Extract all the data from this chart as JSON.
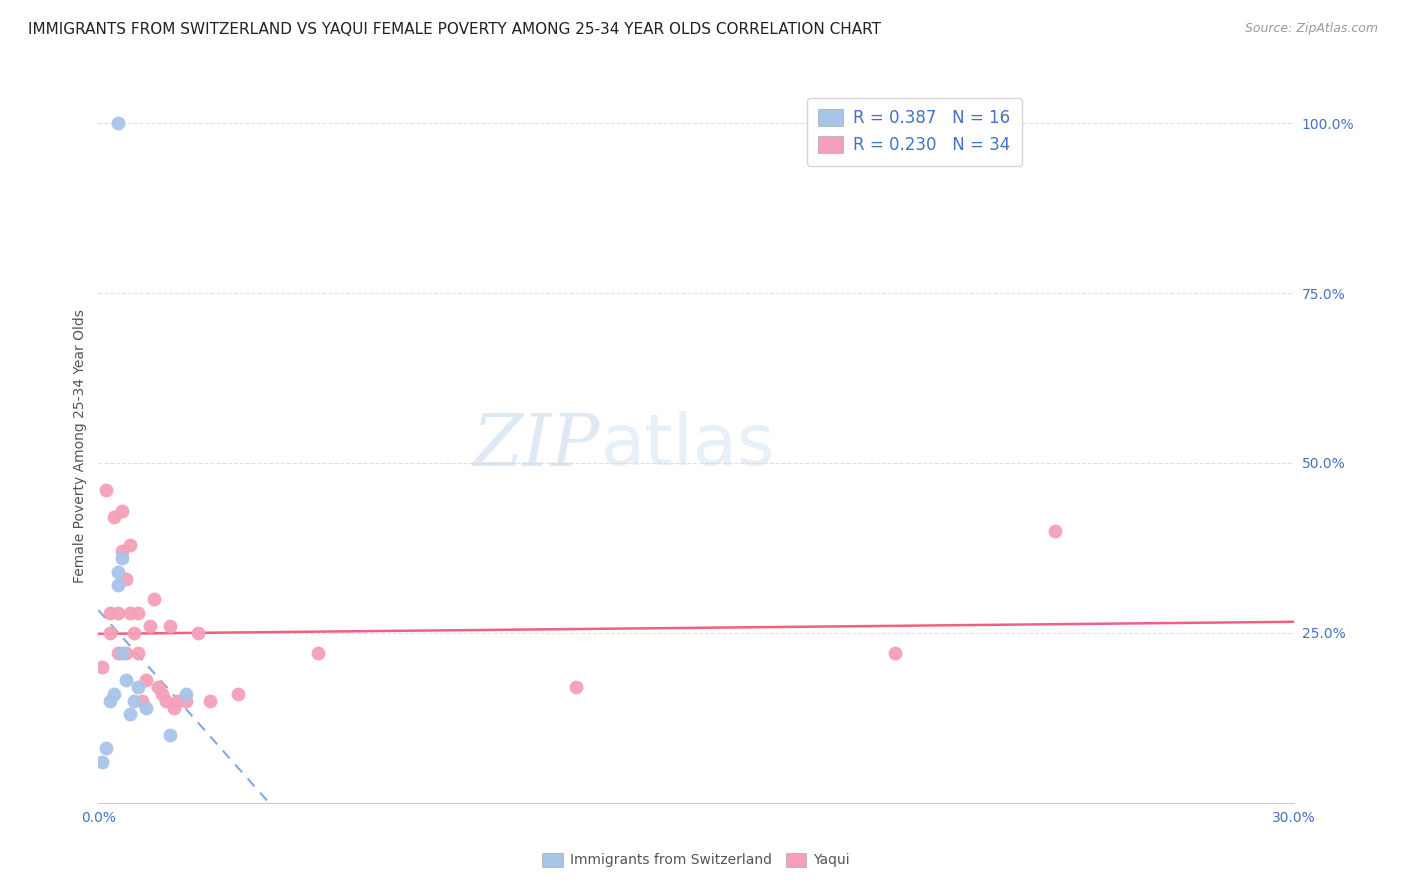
{
  "title": "IMMIGRANTS FROM SWITZERLAND VS YAQUI FEMALE POVERTY AMONG 25-34 YEAR OLDS CORRELATION CHART",
  "source": "Source: ZipAtlas.com",
  "ylabel": "Female Poverty Among 25-34 Year Olds",
  "xlim": [
    0.0,
    0.3
  ],
  "ylim": [
    0.0,
    1.05
  ],
  "xtick_positions": [
    0.0,
    0.06,
    0.12,
    0.18,
    0.24,
    0.3
  ],
  "xticklabels": [
    "0.0%",
    "",
    "",
    "",
    "",
    "30.0%"
  ],
  "ytick_positions": [
    0.25,
    0.5,
    0.75,
    1.0
  ],
  "yticklabels_right": [
    "25.0%",
    "50.0%",
    "75.0%",
    "100.0%"
  ],
  "swiss_color": "#a8c4e8",
  "yaqui_color": "#f4a0b8",
  "swiss_trend_color": "#5b8dd9",
  "yaqui_trend_color": "#f06080",
  "legend_swiss_r": "R = 0.387",
  "legend_swiss_n": "N = 16",
  "legend_yaqui_r": "R = 0.230",
  "legend_yaqui_n": "N = 34",
  "watermark_zip": "ZIP",
  "watermark_atlas": "atlas",
  "swiss_x": [
    0.001,
    0.002,
    0.003,
    0.004,
    0.005,
    0.005,
    0.006,
    0.006,
    0.007,
    0.008,
    0.009,
    0.01,
    0.012,
    0.018,
    0.022,
    0.005
  ],
  "swiss_y": [
    0.06,
    0.08,
    0.15,
    0.16,
    0.32,
    0.34,
    0.36,
    0.22,
    0.18,
    0.13,
    0.15,
    0.17,
    0.14,
    0.1,
    0.16,
    1.0
  ],
  "yaqui_x": [
    0.001,
    0.002,
    0.003,
    0.003,
    0.004,
    0.005,
    0.005,
    0.006,
    0.006,
    0.007,
    0.007,
    0.008,
    0.008,
    0.009,
    0.01,
    0.01,
    0.011,
    0.012,
    0.013,
    0.014,
    0.015,
    0.016,
    0.017,
    0.018,
    0.019,
    0.02,
    0.022,
    0.025,
    0.028,
    0.035,
    0.055,
    0.12,
    0.2,
    0.24
  ],
  "yaqui_y": [
    0.2,
    0.46,
    0.25,
    0.28,
    0.42,
    0.22,
    0.28,
    0.37,
    0.43,
    0.33,
    0.22,
    0.28,
    0.38,
    0.25,
    0.22,
    0.28,
    0.15,
    0.18,
    0.26,
    0.3,
    0.17,
    0.16,
    0.15,
    0.26,
    0.14,
    0.15,
    0.15,
    0.25,
    0.15,
    0.16,
    0.22,
    0.17,
    0.22,
    0.4
  ],
  "grid_color": "#e0e0e0",
  "grid_linestyle": "--",
  "background_color": "#ffffff",
  "title_fontsize": 11,
  "axis_label_fontsize": 10,
  "tick_fontsize": 10,
  "tick_color": "#4472c4",
  "legend_fontsize": 12,
  "legend_text_color": "#4472c4",
  "source_color": "#999999",
  "ylabel_color": "#555555",
  "spine_color": "#cccccc"
}
